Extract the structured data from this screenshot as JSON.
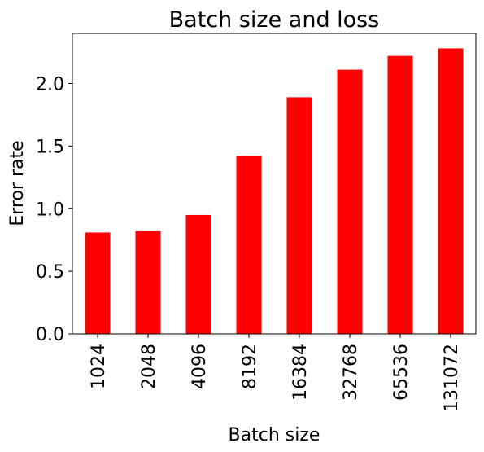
{
  "chart_data": {
    "type": "bar",
    "title": "Batch size and loss",
    "xlabel": "Batch size",
    "ylabel": "Error rate",
    "categories": [
      "1024",
      "2048",
      "4096",
      "8192",
      "16384",
      "32768",
      "65536",
      "131072"
    ],
    "values": [
      0.81,
      0.82,
      0.95,
      1.42,
      1.89,
      2.11,
      2.22,
      2.28
    ],
    "ylim": [
      0,
      2.4
    ],
    "yticks": [
      0.0,
      0.5,
      1.0,
      1.5,
      2.0
    ],
    "ytick_labels": [
      "0.0",
      "0.5",
      "1.0",
      "1.5",
      "2.0"
    ],
    "bar_color": "#ff0000",
    "grid": false,
    "legend": "none"
  }
}
